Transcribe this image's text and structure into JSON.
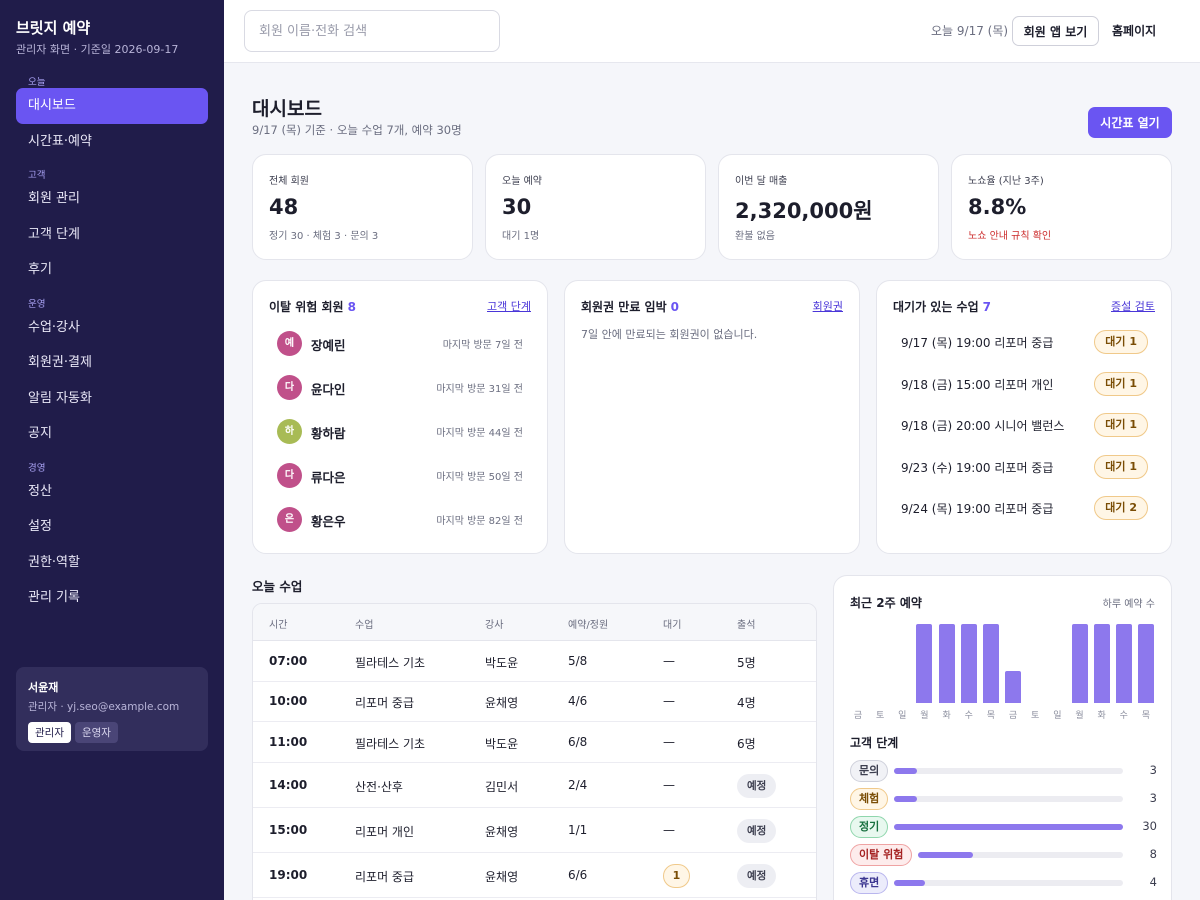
{
  "brand": {
    "name": "브릿지 예약",
    "sub": "관리자 화면 · 기준일 2026-09-17"
  },
  "nav": [
    {
      "group": "오늘",
      "items": [
        {
          "label": "대시보드",
          "active": true
        },
        {
          "label": "시간표·예약"
        }
      ]
    },
    {
      "group": "고객",
      "items": [
        {
          "label": "회원 관리"
        },
        {
          "label": "고객 단계"
        },
        {
          "label": "후기"
        }
      ]
    },
    {
      "group": "운영",
      "items": [
        {
          "label": "수업·강사"
        },
        {
          "label": "회원권·결제"
        },
        {
          "label": "알림 자동화"
        },
        {
          "label": "공지"
        }
      ]
    },
    {
      "group": "경영",
      "items": [
        {
          "label": "정산"
        },
        {
          "label": "설정"
        },
        {
          "label": "권한·역할"
        },
        {
          "label": "관리 기록"
        }
      ]
    }
  ],
  "user": {
    "name": "서윤재",
    "email": "관리자 · yj.seo@example.com",
    "roles": [
      {
        "label": "관리자",
        "active": true
      },
      {
        "label": "운영자",
        "active": false
      }
    ]
  },
  "topbar": {
    "search_placeholder": "회원 이름·전화 검색",
    "today": "오늘 9/17 (목)",
    "member_app": "회원 앱 보기",
    "homepage": "홈페이지"
  },
  "page": {
    "title": "대시보드",
    "subtitle": "9/17 (목) 기준 · 오늘 수업 7개, 예약 30명",
    "open_timetable": "시간표 열기"
  },
  "stats": [
    {
      "label": "전체 회원",
      "value": "48",
      "note": "정기 30 · 체험 3 · 문의 3",
      "warn": false
    },
    {
      "label": "오늘 예약",
      "value": "30",
      "note": "대기 1명",
      "warn": false
    },
    {
      "label": "이번 달 매출",
      "value": "2,320,000원",
      "note": "환불 없음",
      "warn": false
    },
    {
      "label": "노쇼율 (지난 3주)",
      "value": "8.8%",
      "note": "노쇼 안내 규칙 확인",
      "warn": true
    }
  ],
  "churn": {
    "title": "이탈 위험 회원",
    "count": "8",
    "link": "고객 단계",
    "members": [
      {
        "initial": "예",
        "name": "장예린",
        "last": "마지막 방문 7일 전",
        "color": "#c0508a"
      },
      {
        "initial": "다",
        "name": "윤다인",
        "last": "마지막 방문 31일 전",
        "color": "#c0508a"
      },
      {
        "initial": "하",
        "name": "황하람",
        "last": "마지막 방문 44일 전",
        "color": "#a8bb55"
      },
      {
        "initial": "다",
        "name": "류다은",
        "last": "마지막 방문 50일 전",
        "color": "#c0508a"
      },
      {
        "initial": "은",
        "name": "황은우",
        "last": "마지막 방문 82일 전",
        "color": "#c0508a"
      }
    ]
  },
  "expiry": {
    "title": "회원권 만료 임박",
    "count": "0",
    "link": "회원권",
    "empty": "7일 안에 만료되는 회원권이 없습니다."
  },
  "waitlist": {
    "title": "대기가 있는 수업",
    "count": "7",
    "link": "증설 검토",
    "items": [
      {
        "text": "9/17 (목) 19:00 리포머 중급",
        "badge": "대기 1"
      },
      {
        "text": "9/18 (금) 15:00 리포머 개인",
        "badge": "대기 1"
      },
      {
        "text": "9/18 (금) 20:00 시니어 밸런스",
        "badge": "대기 1"
      },
      {
        "text": "9/23 (수) 19:00 리포머 중급",
        "badge": "대기 1"
      },
      {
        "text": "9/24 (목) 19:00 리포머 중급",
        "badge": "대기 2"
      }
    ]
  },
  "today_classes": {
    "title": "오늘 수업",
    "headers": [
      "시간",
      "수업",
      "강사",
      "예약/정원",
      "대기",
      "출석"
    ],
    "rows": [
      {
        "time": "07:00",
        "class": "필라테스 기초",
        "teacher": "박도윤",
        "booked": "5/8",
        "wait": "—",
        "attend": "5명",
        "wait_badge": false,
        "planned": false
      },
      {
        "time": "10:00",
        "class": "리포머 중급",
        "teacher": "윤채영",
        "booked": "4/6",
        "wait": "—",
        "attend": "4명",
        "wait_badge": false,
        "planned": false
      },
      {
        "time": "11:00",
        "class": "필라테스 기초",
        "teacher": "박도윤",
        "booked": "6/8",
        "wait": "—",
        "attend": "6명",
        "wait_badge": false,
        "planned": false
      },
      {
        "time": "14:00",
        "class": "산전·산후",
        "teacher": "김민서",
        "booked": "2/4",
        "wait": "—",
        "attend": "예정",
        "wait_badge": false,
        "planned": true
      },
      {
        "time": "15:00",
        "class": "리포머 개인",
        "teacher": "윤채영",
        "booked": "1/1",
        "wait": "—",
        "attend": "예정",
        "wait_badge": false,
        "planned": true
      },
      {
        "time": "19:00",
        "class": "리포머 중급",
        "teacher": "윤채영",
        "booked": "6/6",
        "wait": "1",
        "attend": "예정",
        "wait_badge": true,
        "planned": true
      }
    ]
  },
  "chart_data": {
    "type": "bar",
    "title": "최근 2주 예약",
    "note": "하루 예약 수",
    "categories": [
      "금",
      "토",
      "일",
      "월",
      "화",
      "수",
      "목",
      "금",
      "토",
      "일",
      "월",
      "화",
      "수",
      "목"
    ],
    "values": [
      0,
      0,
      0,
      30,
      30,
      30,
      30,
      12,
      0,
      0,
      30,
      30,
      30,
      30
    ],
    "ylim": [
      0,
      30
    ],
    "color": "#8d78ed",
    "grid": false
  },
  "stages": {
    "title": "고객 단계",
    "max": 30,
    "items": [
      {
        "label": "문의",
        "count": 3,
        "bg": "#f1f2f6",
        "border": "#cfd1db",
        "text": "#3c3e4f"
      },
      {
        "label": "체험",
        "count": 3,
        "bg": "#fff6e6",
        "border": "#f0c98a",
        "text": "#7a4d05"
      },
      {
        "label": "정기",
        "count": 30,
        "bg": "#e8f8ef",
        "border": "#8fd6ac",
        "text": "#18703f"
      },
      {
        "label": "이탈 위험",
        "count": 8,
        "bg": "#fdecec",
        "border": "#efa3a3",
        "text": "#a52121"
      },
      {
        "label": "휴면",
        "count": 4,
        "bg": "#ececfb",
        "border": "#b9b6ee",
        "text": "#3b3590"
      }
    ]
  }
}
